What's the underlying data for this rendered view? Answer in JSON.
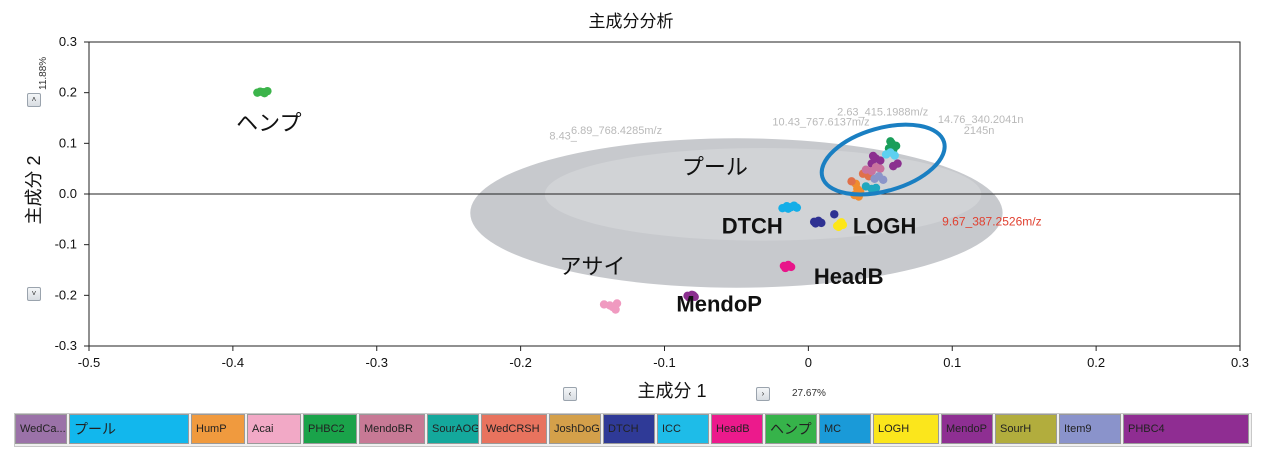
{
  "chart_data": {
    "type": "scatter",
    "title": "主成分分析",
    "xlabel": "主成分 1",
    "ylabel": "主成分 2",
    "x_percent": "27.67%",
    "y_percent": "11.88%",
    "xlim": [
      -0.5,
      0.3
    ],
    "ylim": [
      -0.3,
      0.3
    ],
    "x_ticks": [
      "-0.5",
      "-0.4",
      "-0.3",
      "-0.2",
      "-0.1",
      "0",
      "0.1",
      "0.2",
      "0.3"
    ],
    "y_ticks": [
      "0.3",
      "0.2",
      "0.1",
      "0.0",
      "-0.1",
      "-0.2",
      "-0.3"
    ],
    "loadings_cloud": {
      "x_range": [
        -0.235,
        0.135
      ],
      "y_range": [
        -0.185,
        0.11
      ],
      "color": "#c7c9cd"
    },
    "cloud_labels": [
      {
        "text": "6.89_768.4285m/z",
        "x": -0.165,
        "y": 0.118
      },
      {
        "text": "10.43_767.6137m/z",
        "x": -0.025,
        "y": 0.135
      },
      {
        "text": "2.63_415.1988m/z",
        "x": 0.02,
        "y": 0.155
      },
      {
        "text": "14.76_340.2041n",
        "x": 0.09,
        "y": 0.14
      },
      {
        "text": "2145n",
        "x": 0.108,
        "y": 0.118
      },
      {
        "text": "8.43_",
        "x": -0.18,
        "y": 0.108
      }
    ],
    "highlight_label": {
      "text": "9.67_387.2526m/z",
      "x": 0.093,
      "y": -0.062,
      "color": "#e04030"
    },
    "ellipse": {
      "cx": 0.052,
      "cy": 0.068,
      "rx": 0.044,
      "ry": 0.062,
      "color": "#1a7fc2"
    },
    "groups": [
      {
        "label": "ヘンプ",
        "color": "#3cb44b",
        "label_pos": [
          -0.375,
          0.125
        ],
        "bold": false,
        "points": [
          [
            -0.381,
            0.202
          ],
          [
            -0.378,
            0.199
          ],
          [
            -0.376,
            0.203
          ],
          [
            -0.383,
            0.2
          ],
          [
            -0.379,
            0.201
          ]
        ]
      },
      {
        "label": "アサイ",
        "color": "#f09ac0",
        "label_pos": [
          -0.15,
          -0.158
        ],
        "bold": false,
        "points": [
          [
            -0.142,
            -0.218
          ],
          [
            -0.136,
            -0.223
          ],
          [
            -0.133,
            -0.216
          ],
          [
            -0.134,
            -0.228
          ],
          [
            -0.138,
            -0.22
          ]
        ]
      },
      {
        "label": "MendoP",
        "color": "#8b2f8f",
        "label_pos": [
          -0.062,
          -0.232
        ],
        "bold": true,
        "points": [
          [
            -0.084,
            -0.201
          ],
          [
            -0.081,
            -0.199
          ],
          [
            -0.079,
            -0.203
          ],
          [
            -0.083,
            -0.204
          ],
          [
            -0.08,
            -0.2
          ]
        ]
      },
      {
        "label": "HeadB",
        "color": "#e8168a",
        "label_pos": [
          0.028,
          -0.178
        ],
        "bold": true,
        "points": [
          [
            -0.017,
            -0.142
          ],
          [
            -0.014,
            -0.14
          ],
          [
            -0.012,
            -0.144
          ],
          [
            -0.016,
            -0.146
          ],
          [
            -0.013,
            -0.143
          ]
        ]
      },
      {
        "label": "DTCH",
        "color": "#2e3192",
        "label_pos": [
          -0.039,
          -0.078
        ],
        "bold": true,
        "points": [
          [
            0.004,
            -0.055
          ],
          [
            0.007,
            -0.053
          ],
          [
            0.009,
            -0.057
          ],
          [
            0.005,
            -0.058
          ],
          [
            0.018,
            -0.04
          ]
        ]
      },
      {
        "label": "",
        "color": "#14aee8",
        "label_pos": null,
        "bold": false,
        "points": [
          [
            -0.018,
            -0.028
          ],
          [
            -0.015,
            -0.024
          ],
          [
            -0.012,
            -0.026
          ],
          [
            -0.01,
            -0.023
          ],
          [
            -0.014,
            -0.029
          ],
          [
            -0.008,
            -0.027
          ]
        ]
      },
      {
        "label": "LOGH",
        "color": "#fde619",
        "label_pos": [
          0.053,
          -0.078
        ],
        "bold": true,
        "points": [
          [
            0.02,
            -0.063
          ],
          [
            0.022,
            -0.058
          ],
          [
            0.024,
            -0.061
          ],
          [
            0.023,
            -0.056
          ],
          [
            0.021,
            -0.065
          ]
        ]
      },
      {
        "label": "プール",
        "color": "#f08c2e",
        "label_pos": [
          -0.065,
          0.038
        ],
        "bold": false,
        "points": [
          [
            0.032,
            -0.002
          ],
          [
            0.034,
            0.01
          ],
          [
            0.036,
            0.005
          ],
          [
            0.035,
            -0.005
          ],
          [
            0.033,
            0.02
          ]
        ]
      },
      {
        "label": "",
        "color": "#e0704a",
        "label_pos": null,
        "bold": false,
        "points": [
          [
            0.03,
            0.025
          ],
          [
            0.038,
            0.04
          ],
          [
            0.042,
            0.035
          ]
        ]
      },
      {
        "label": "",
        "color": "#1a9e5a",
        "label_pos": null,
        "bold": false,
        "points": [
          [
            0.056,
            0.09
          ],
          [
            0.058,
            0.1
          ],
          [
            0.061,
            0.095
          ],
          [
            0.059,
            0.087
          ],
          [
            0.057,
            0.104
          ]
        ]
      },
      {
        "label": "",
        "color": "#8b2f8f",
        "label_pos": null,
        "bold": false,
        "points": [
          [
            0.044,
            0.06
          ],
          [
            0.047,
            0.07
          ],
          [
            0.05,
            0.066
          ],
          [
            0.045,
            0.075
          ],
          [
            0.059,
            0.055
          ],
          [
            0.062,
            0.06
          ]
        ]
      },
      {
        "label": "",
        "color": "#c9729e",
        "label_pos": null,
        "bold": false,
        "points": [
          [
            0.04,
            0.048
          ],
          [
            0.044,
            0.045
          ],
          [
            0.05,
            0.05
          ],
          [
            0.047,
            0.053
          ]
        ]
      },
      {
        "label": "",
        "color": "#5ed0f0",
        "label_pos": null,
        "bold": false,
        "points": [
          [
            0.054,
            0.078
          ],
          [
            0.057,
            0.082
          ],
          [
            0.06,
            0.076
          ]
        ]
      },
      {
        "label": "",
        "color": "#1fa8c0",
        "label_pos": null,
        "bold": false,
        "points": [
          [
            0.044,
            0.01
          ],
          [
            0.047,
            0.012
          ],
          [
            0.04,
            0.015
          ]
        ]
      },
      {
        "label": "",
        "color": "#8b95c9",
        "label_pos": null,
        "bold": false,
        "points": [
          [
            0.046,
            0.03
          ],
          [
            0.049,
            0.035
          ],
          [
            0.052,
            0.028
          ]
        ]
      }
    ]
  },
  "legend": {
    "items": [
      {
        "label": "WedCa...",
        "color": "#9b72a8",
        "width": 52,
        "big": false
      },
      {
        "label": "プール",
        "color": "#12b7ed",
        "width": 120,
        "big": true
      },
      {
        "label": "HumP",
        "color": "#f09a3e",
        "width": 54,
        "big": false
      },
      {
        "label": "Acai",
        "color": "#f2a9c6",
        "width": 54,
        "big": false
      },
      {
        "label": "PHBC2",
        "color": "#1aa34a",
        "width": 54,
        "big": false
      },
      {
        "label": "MendoBR",
        "color": "#c77995",
        "width": 66,
        "big": false
      },
      {
        "label": "SourAOG",
        "color": "#14a89c",
        "width": 52,
        "big": false
      },
      {
        "label": "WedCRSH",
        "color": "#e8735e",
        "width": 66,
        "big": false
      },
      {
        "label": "JoshDoG",
        "color": "#d4a04a",
        "width": 52,
        "big": false
      },
      {
        "label": "DTCH",
        "color": "#2f3a97",
        "width": 52,
        "big": false
      },
      {
        "label": "ICC",
        "color": "#1ebce8",
        "width": 52,
        "big": false
      },
      {
        "label": "HeadB",
        "color": "#ec1a8c",
        "width": 52,
        "big": false
      },
      {
        "label": "ヘンプ",
        "color": "#36b34a",
        "width": 52,
        "big": true
      },
      {
        "label": "MC",
        "color": "#1a9ad8",
        "width": 52,
        "big": false
      },
      {
        "label": "LOGH",
        "color": "#fbe61c",
        "width": 66,
        "big": false
      },
      {
        "label": "MendoP",
        "color": "#8e2f92",
        "width": 52,
        "big": false
      },
      {
        "label": "SourH",
        "color": "#b2ad3d",
        "width": 62,
        "big": false
      },
      {
        "label": "Item9",
        "color": "#8a93cb",
        "width": 62,
        "big": false
      },
      {
        "label": "PHBC4",
        "color": "#8f2d92",
        "width": 126,
        "big": false
      }
    ]
  },
  "controls": {
    "up_arrow": "˄",
    "down_arrow": "˅",
    "left_arrow": "‹",
    "right_arrow": "›"
  }
}
